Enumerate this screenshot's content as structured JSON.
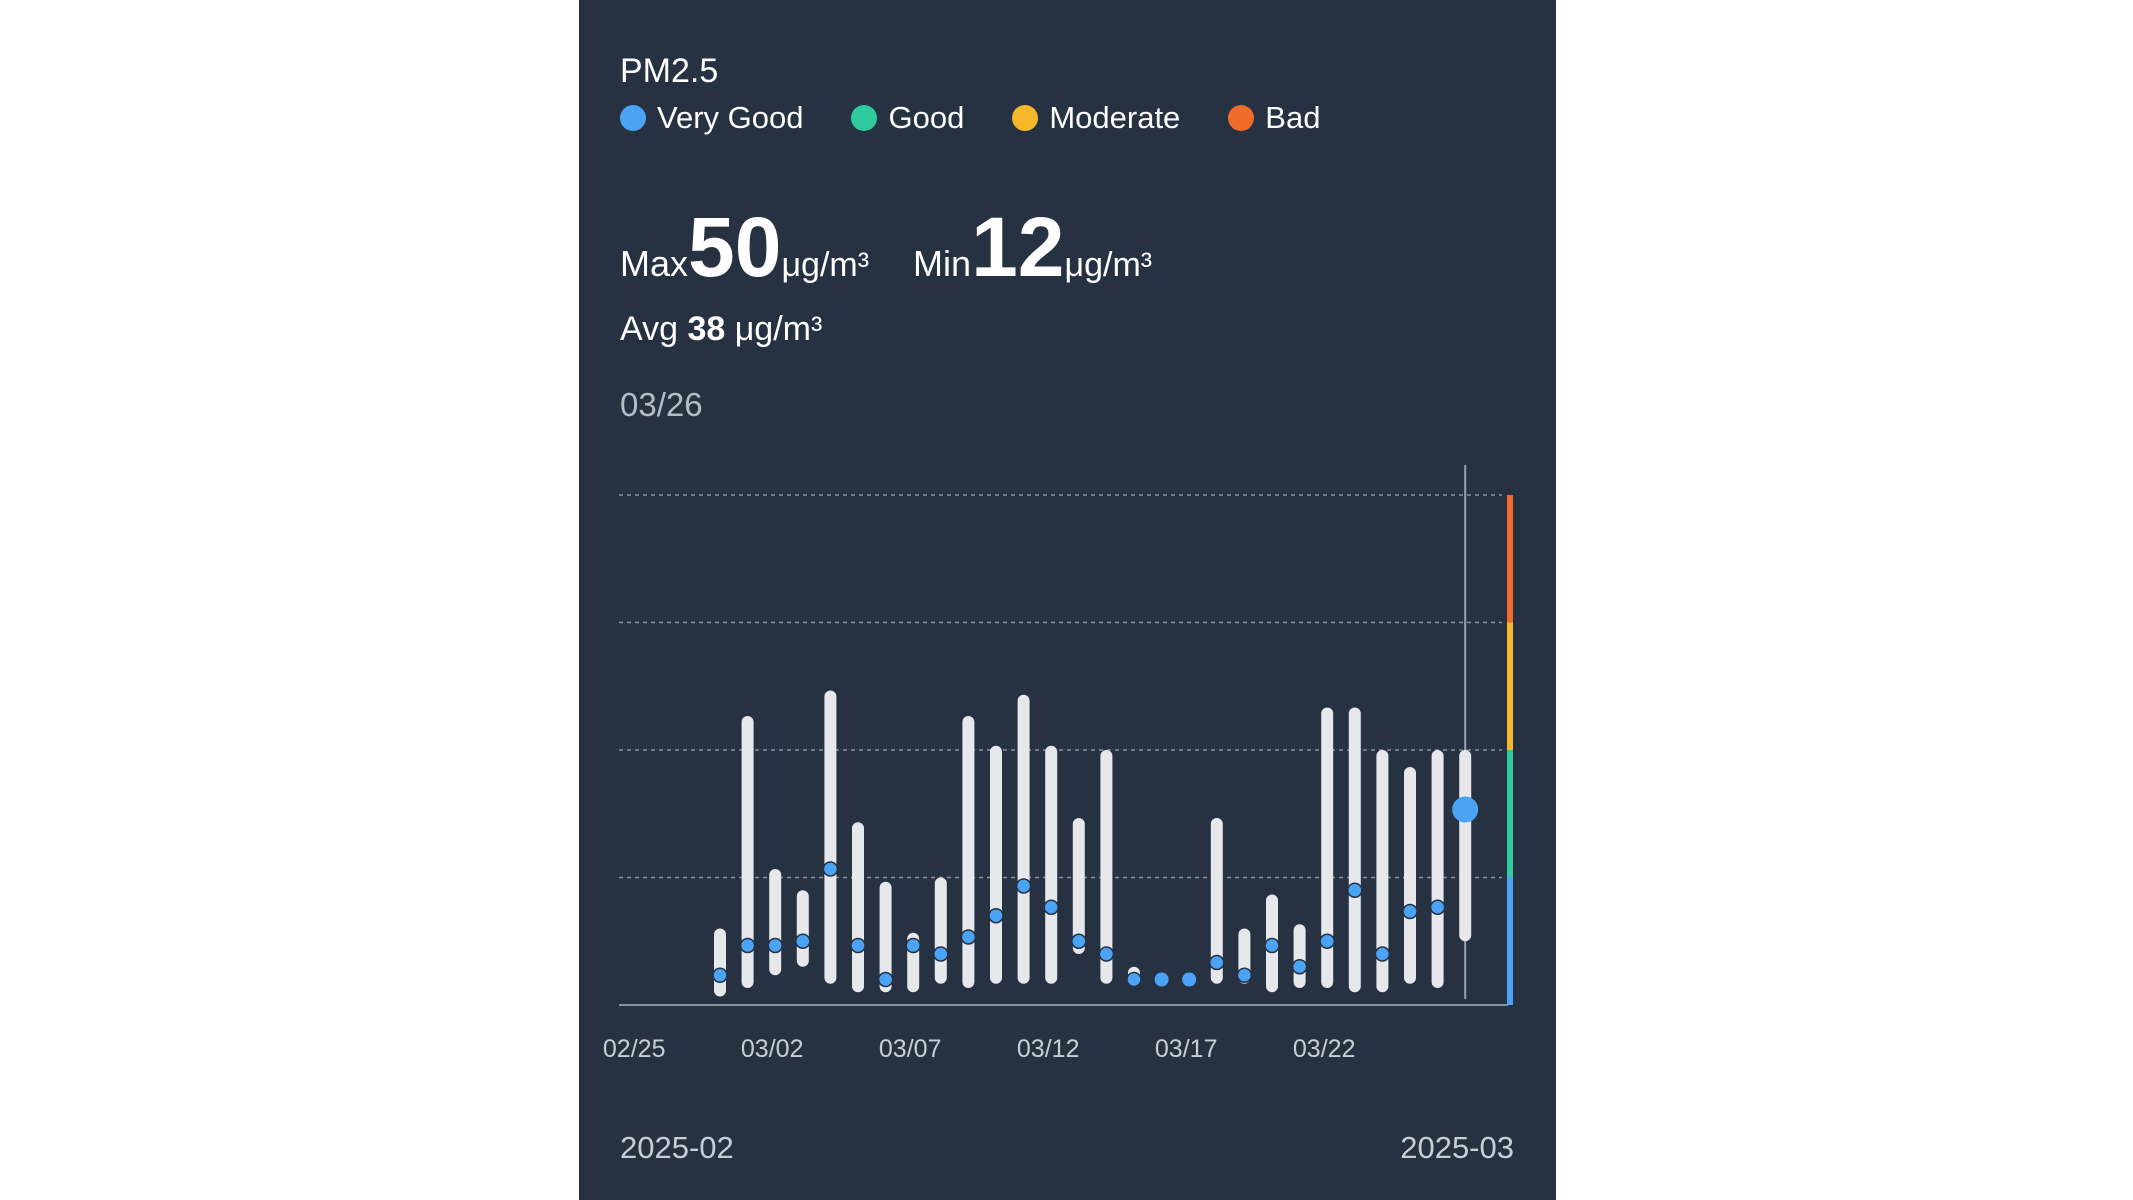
{
  "title": "PM2.5",
  "legend": [
    {
      "label": "Very Good",
      "color": "#4aa3f5"
    },
    {
      "label": "Good",
      "color": "#2ec99c"
    },
    {
      "label": "Moderate",
      "color": "#f4b82a"
    },
    {
      "label": "Bad",
      "color": "#f06a2a"
    }
  ],
  "stats": {
    "max_label": "Max",
    "max_value": "50",
    "max_unit": "μg/m³",
    "min_label": "Min",
    "min_value": "12",
    "min_unit": "μg/m³",
    "avg_label": "Avg",
    "avg_value": "38",
    "avg_unit": "μg/m³"
  },
  "selected_date": "03/26",
  "months": {
    "left": "2025-02",
    "right": "2025-03"
  },
  "chart_data": {
    "type": "range-bar",
    "ylim": [
      0,
      120
    ],
    "gridlines": [
      30,
      60,
      90,
      120
    ],
    "grid": true,
    "x_tick_labels": [
      "02/25",
      "03/02",
      "03/07",
      "03/12",
      "03/17",
      "03/22"
    ],
    "bands": [
      {
        "from": 0,
        "to": 30,
        "color": "#4aa3f5"
      },
      {
        "from": 30,
        "to": 60,
        "color": "#2ec99c"
      },
      {
        "from": 60,
        "to": 90,
        "color": "#f4b82a"
      },
      {
        "from": 90,
        "to": 120,
        "color": "#f06a2a"
      }
    ],
    "days": [
      {
        "date": "02/28",
        "min": 2,
        "max": 18,
        "avg": 7
      },
      {
        "date": "03/01",
        "min": 4,
        "max": 68,
        "avg": 14
      },
      {
        "date": "03/02",
        "min": 7,
        "max": 32,
        "avg": 14
      },
      {
        "date": "03/03",
        "min": 9,
        "max": 27,
        "avg": 15
      },
      {
        "date": "03/04",
        "min": 5,
        "max": 74,
        "avg": 32
      },
      {
        "date": "03/05",
        "min": 3,
        "max": 43,
        "avg": 14
      },
      {
        "date": "03/06",
        "min": 3,
        "max": 29,
        "avg": 6
      },
      {
        "date": "03/07",
        "min": 3,
        "max": 17,
        "avg": 14
      },
      {
        "date": "03/08",
        "min": 5,
        "max": 30,
        "avg": 12
      },
      {
        "date": "03/09",
        "min": 4,
        "max": 68,
        "avg": 16
      },
      {
        "date": "03/10",
        "min": 5,
        "max": 61,
        "avg": 21
      },
      {
        "date": "03/11",
        "min": 5,
        "max": 73,
        "avg": 28
      },
      {
        "date": "03/12",
        "min": 5,
        "max": 61,
        "avg": 23
      },
      {
        "date": "03/13",
        "min": 12,
        "max": 44,
        "avg": 15
      },
      {
        "date": "03/14",
        "min": 5,
        "max": 60,
        "avg": 12
      },
      {
        "date": "03/15",
        "min": 5,
        "max": 9,
        "avg": 6
      },
      {
        "date": "03/16",
        "min": 6,
        "max": 6,
        "avg": 6
      },
      {
        "date": "03/17",
        "min": 6,
        "max": 6,
        "avg": 6
      },
      {
        "date": "03/18",
        "min": 5,
        "max": 44,
        "avg": 10
      },
      {
        "date": "03/19",
        "min": 5,
        "max": 18,
        "avg": 7
      },
      {
        "date": "03/20",
        "min": 3,
        "max": 26,
        "avg": 14
      },
      {
        "date": "03/21",
        "min": 4,
        "max": 19,
        "avg": 9
      },
      {
        "date": "03/22",
        "min": 4,
        "max": 70,
        "avg": 15
      },
      {
        "date": "03/23",
        "min": 3,
        "max": 70,
        "avg": 27
      },
      {
        "date": "03/24",
        "min": 3,
        "max": 60,
        "avg": 12
      },
      {
        "date": "03/25",
        "min": 5,
        "max": 56,
        "avg": 22
      },
      {
        "date": "03/26",
        "min": 4,
        "max": 60,
        "avg": 23
      },
      {
        "date": "03/27",
        "min": 15,
        "max": 60,
        "avg": 46
      }
    ],
    "selected_index": 27
  }
}
